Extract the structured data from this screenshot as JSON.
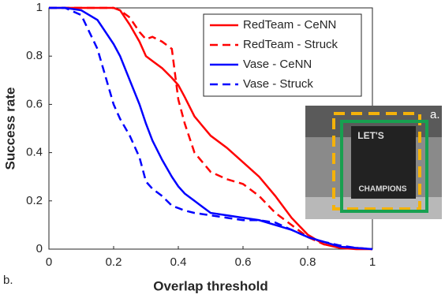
{
  "chart_data": {
    "type": "line",
    "x_label": "Overlap threshold",
    "y_label": "Success rate",
    "x": [
      0,
      0.05,
      0.1,
      0.15,
      0.2,
      0.22,
      0.25,
      0.28,
      0.3,
      0.32,
      0.35,
      0.38,
      0.4,
      0.42,
      0.45,
      0.5,
      0.55,
      0.6,
      0.65,
      0.7,
      0.75,
      0.8,
      0.85,
      0.9,
      0.95,
      1
    ],
    "series": [
      {
        "name": "RedTeam - CeNN",
        "color": "#ff0000",
        "dash": false,
        "values": [
          1,
          1,
          1,
          1,
          1,
          0.99,
          0.93,
          0.86,
          0.8,
          0.78,
          0.75,
          0.71,
          0.68,
          0.63,
          0.55,
          0.47,
          0.42,
          0.36,
          0.3,
          0.22,
          0.13,
          0.06,
          0.02,
          0.005,
          0,
          0
        ]
      },
      {
        "name": "RedTeam - Struck",
        "color": "#ff0000",
        "dash": true,
        "values": [
          1,
          1,
          1,
          1,
          1,
          0.99,
          0.96,
          0.9,
          0.87,
          0.88,
          0.86,
          0.83,
          0.62,
          0.52,
          0.4,
          0.32,
          0.29,
          0.27,
          0.22,
          0.15,
          0.1,
          0.05,
          0.02,
          0.01,
          0.005,
          0
        ]
      },
      {
        "name": "Vase - CeNN",
        "color": "#0000ff",
        "dash": false,
        "values": [
          1,
          1,
          0.99,
          0.95,
          0.85,
          0.8,
          0.7,
          0.6,
          0.52,
          0.45,
          0.37,
          0.3,
          0.26,
          0.23,
          0.2,
          0.15,
          0.14,
          0.13,
          0.12,
          0.1,
          0.08,
          0.05,
          0.03,
          0.01,
          0.005,
          0
        ]
      },
      {
        "name": "Vase - Struck",
        "color": "#0000ff",
        "dash": true,
        "values": [
          1,
          1,
          0.97,
          0.83,
          0.6,
          0.54,
          0.47,
          0.38,
          0.28,
          0.25,
          0.22,
          0.18,
          0.17,
          0.16,
          0.15,
          0.14,
          0.13,
          0.12,
          0.12,
          0.11,
          0.08,
          0.05,
          0.03,
          0.015,
          0.005,
          0
        ]
      }
    ],
    "xlim": [
      0,
      1
    ],
    "ylim": [
      0,
      1
    ],
    "xticks": [
      0,
      0.2,
      0.4,
      0.6,
      0.8,
      1
    ],
    "yticks": [
      0,
      0.2,
      0.4,
      0.6,
      0.8,
      1
    ],
    "legend": "upper right",
    "grid": false,
    "panel_label": "b.",
    "inset": {
      "label": "a.",
      "texts": [
        "LET'S",
        "CHAMPIONS"
      ]
    }
  }
}
